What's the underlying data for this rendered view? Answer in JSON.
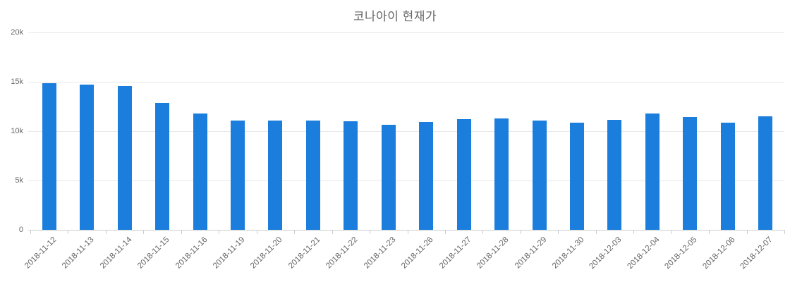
{
  "chart_data": {
    "type": "bar",
    "title": "코나아이 현재가",
    "categories": [
      "2018-11-12",
      "2018-11-13",
      "2018-11-14",
      "2018-11-15",
      "2018-11-16",
      "2018-11-19",
      "2018-11-20",
      "2018-11-21",
      "2018-11-22",
      "2018-11-23",
      "2018-11-26",
      "2018-11-27",
      "2018-11-28",
      "2018-11-29",
      "2018-11-30",
      "2018-12-03",
      "2018-12-04",
      "2018-12-05",
      "2018-12-06",
      "2018-12-07"
    ],
    "values": [
      14850,
      14750,
      14550,
      12850,
      11800,
      11100,
      11100,
      11050,
      11000,
      10650,
      10900,
      11250,
      11300,
      11050,
      10850,
      11150,
      11800,
      11400,
      10850,
      11500
    ],
    "xlabel": "",
    "ylabel": "",
    "ylim": [
      0,
      20000
    ],
    "ytick_values": [
      0,
      5000,
      10000,
      15000,
      20000
    ],
    "ytick_labels": [
      "0",
      "5k",
      "10k",
      "15k",
      "20k"
    ],
    "grid": true,
    "legend": false,
    "bar_color": "#1b7edc",
    "grid_color": "#e8e8e8",
    "axis_line_color": "#cfcfcf",
    "label_color": "#666666",
    "title_color": "#666666"
  }
}
